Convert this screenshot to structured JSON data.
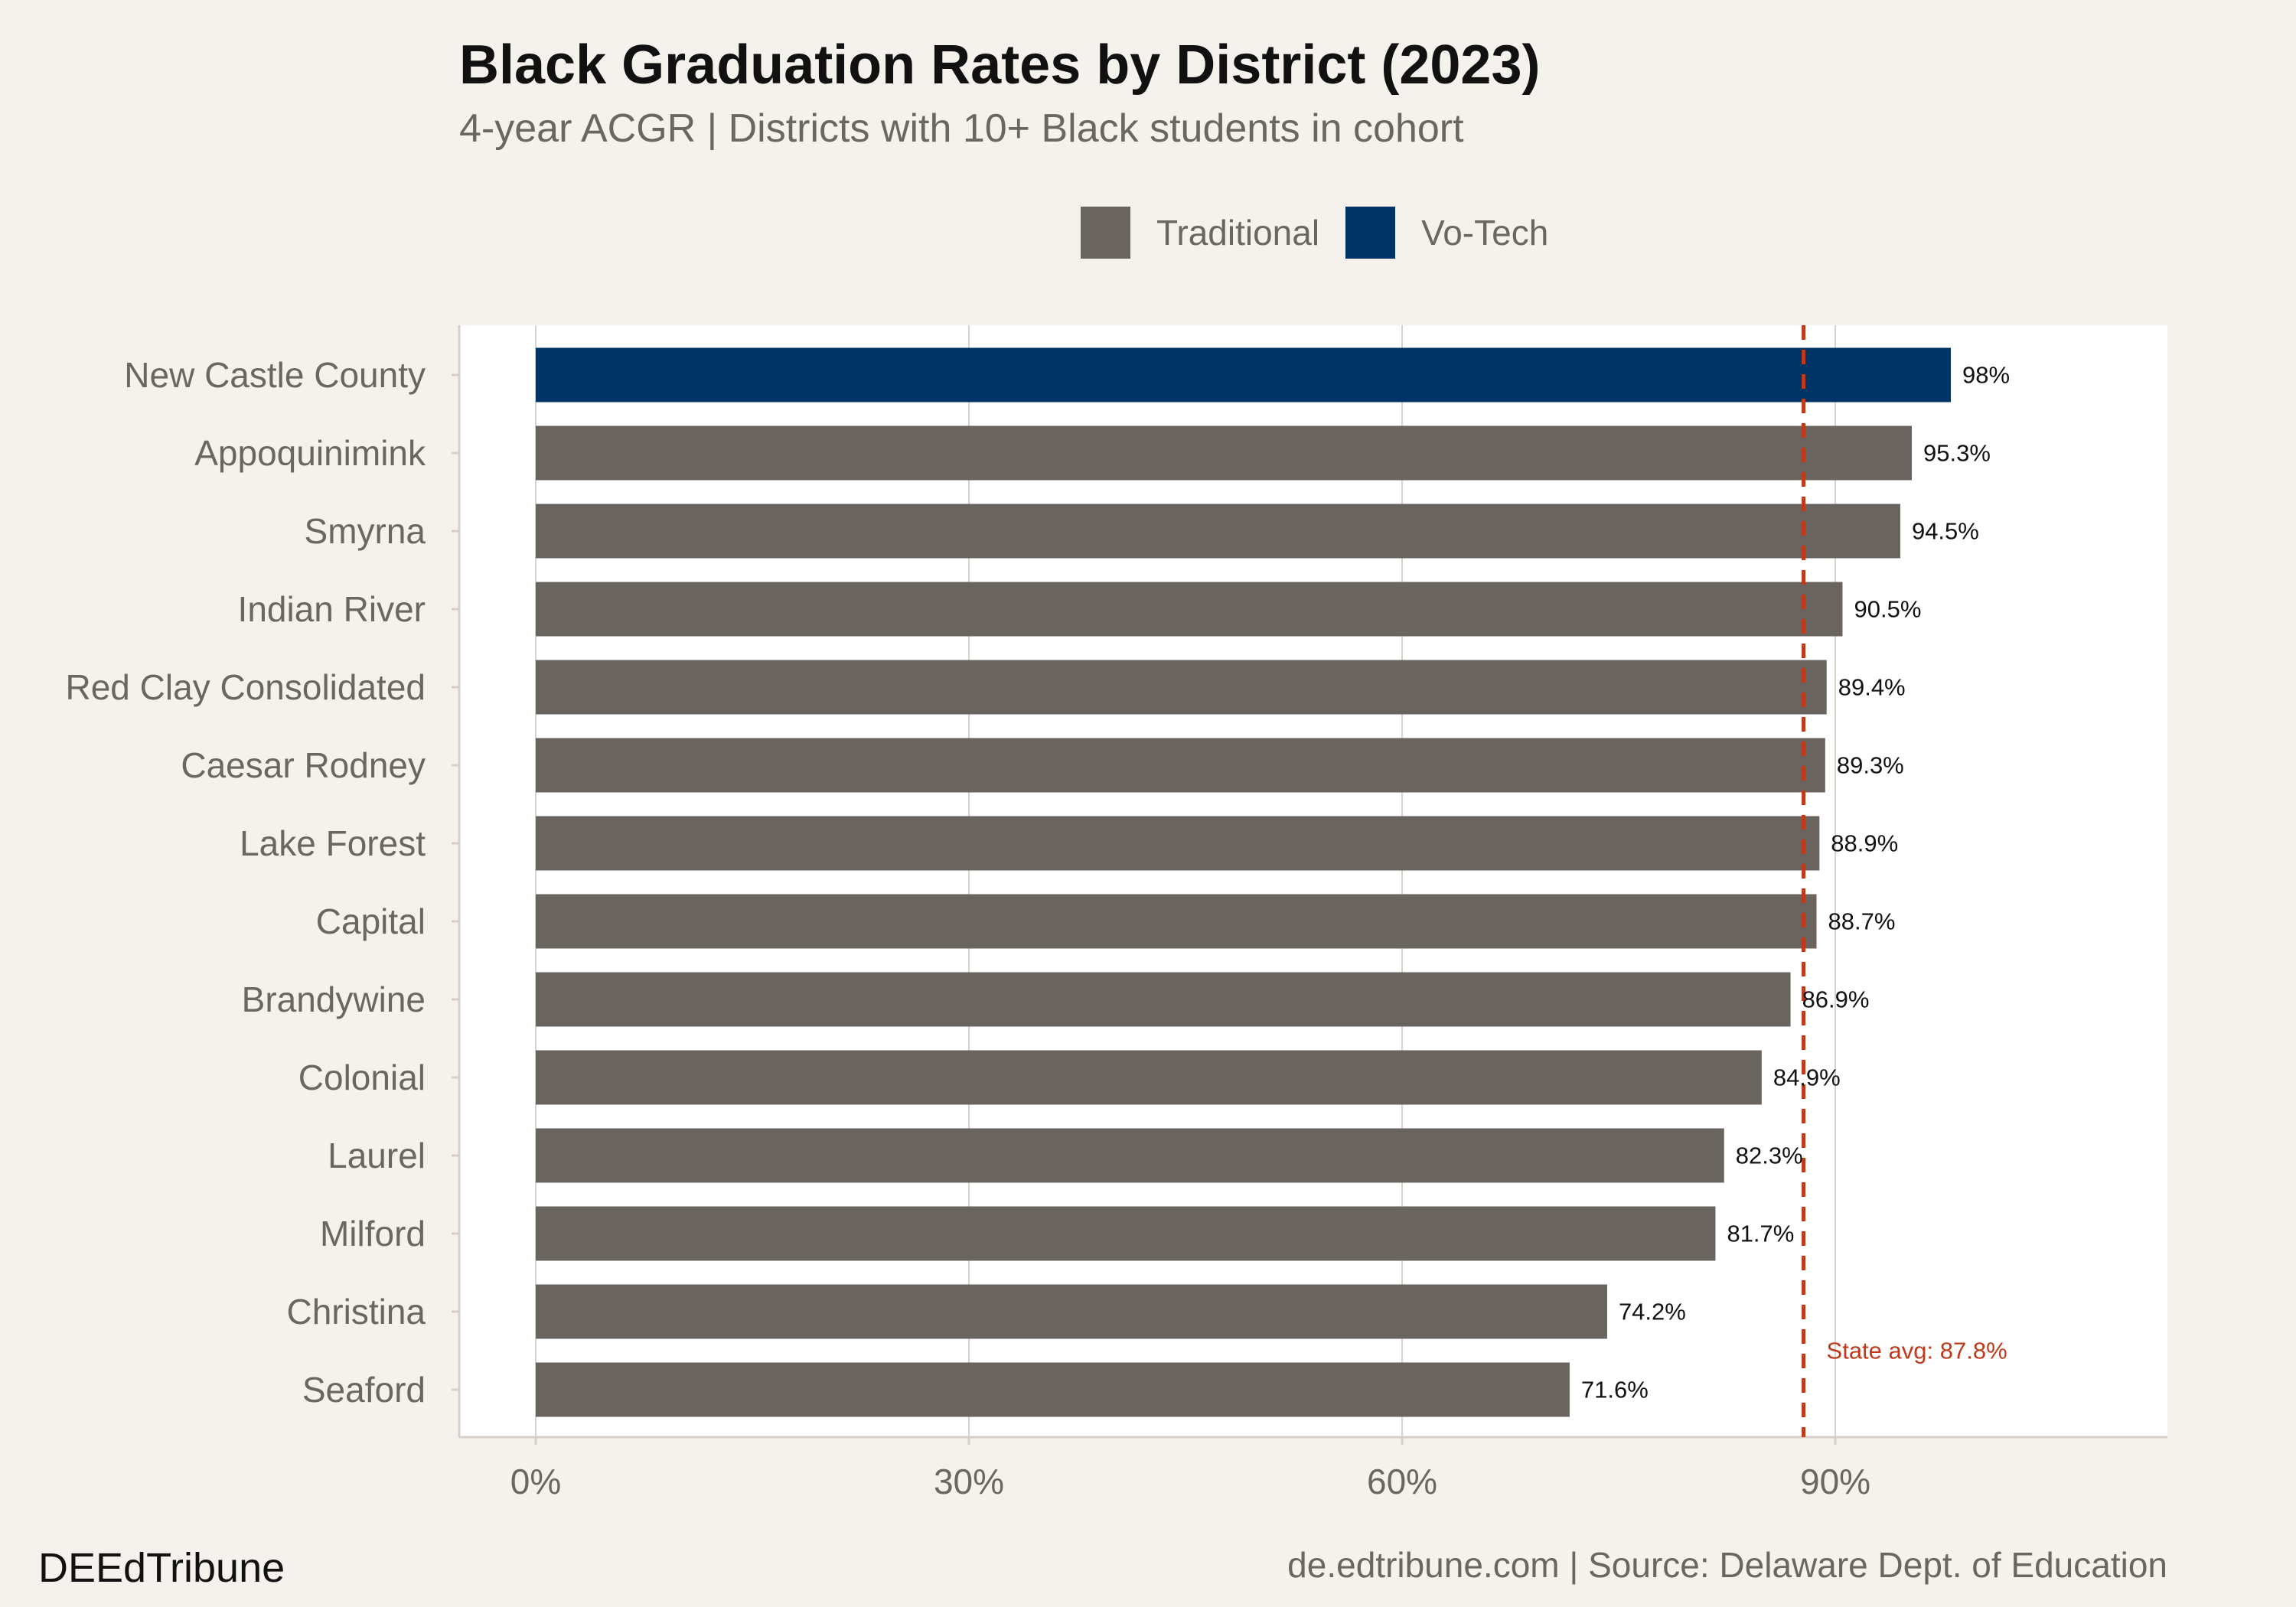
{
  "chart_data": {
    "type": "bar",
    "orientation": "horizontal",
    "title": "Black Graduation Rates by District (2023)",
    "subtitle": "4-year ACGR | Districts with 10+ Black students in cohort",
    "categories": [
      "New Castle County",
      "Appoquinimink",
      "Smyrna",
      "Indian River",
      "Red Clay Consolidated",
      "Caesar Rodney",
      "Lake Forest",
      "Capital",
      "Brandywine",
      "Colonial",
      "Laurel",
      "Milford",
      "Christina",
      "Seaford"
    ],
    "values": [
      98,
      95.3,
      94.5,
      90.5,
      89.4,
      89.3,
      88.9,
      88.7,
      86.9,
      84.9,
      82.3,
      81.7,
      74.2,
      71.6
    ],
    "data_labels": [
      "98%",
      "95.3%",
      "94.5%",
      "90.5%",
      "89.4%",
      "89.3%",
      "88.9%",
      "88.7%",
      "86.9%",
      "84.9%",
      "82.3%",
      "81.7%",
      "74.2%",
      "71.6%"
    ],
    "groups": [
      "Vo-Tech",
      "Traditional",
      "Traditional",
      "Traditional",
      "Traditional",
      "Traditional",
      "Traditional",
      "Traditional",
      "Traditional",
      "Traditional",
      "Traditional",
      "Traditional",
      "Traditional",
      "Traditional"
    ],
    "legend": [
      {
        "name": "Traditional",
        "color": "#69645e"
      },
      {
        "name": "Vo-Tech",
        "color": "#003366"
      }
    ],
    "legend_position": "top",
    "xlim": [
      -5.3,
      113
    ],
    "xticks": [
      0,
      30,
      60,
      90
    ],
    "xtick_labels": [
      "0%",
      "30%",
      "60%",
      "90%"
    ],
    "grid": true,
    "reference_line": {
      "value": 87.8,
      "label": "State avg: 87.8%",
      "color": "#c0391b",
      "style": "dashed"
    },
    "xlabel": "",
    "ylabel": ""
  },
  "footer": {
    "brand": "DEEdTribune",
    "source": "de.edtribune.com | Source: Delaware Dept. of Education"
  }
}
